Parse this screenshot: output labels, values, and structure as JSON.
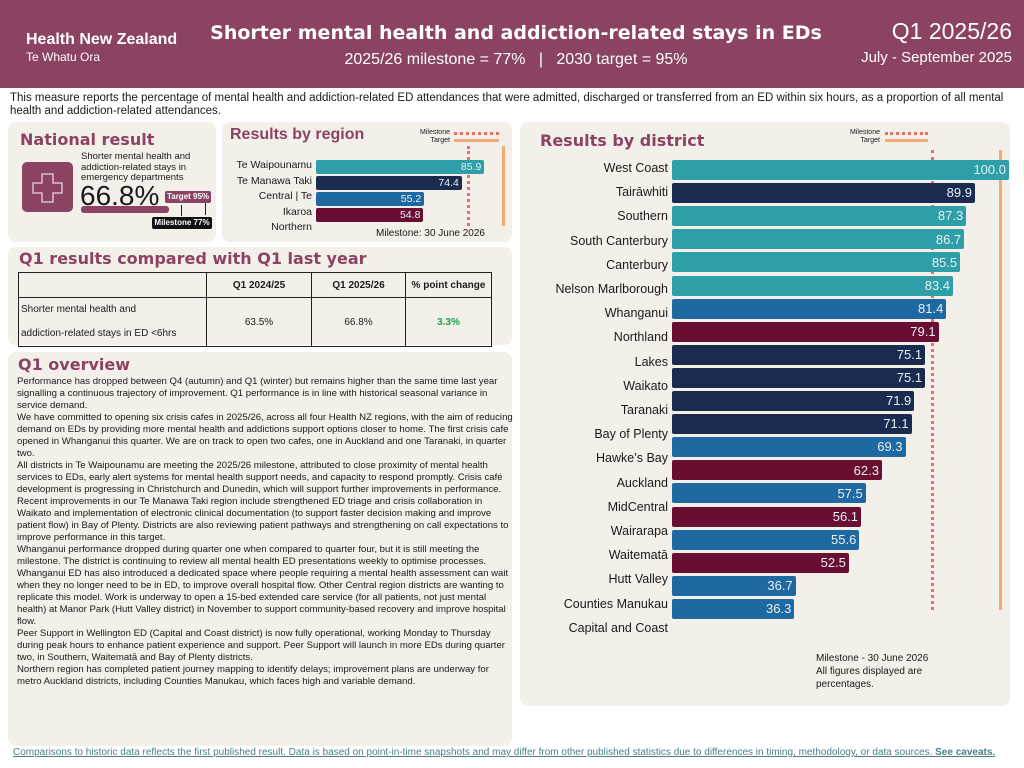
{
  "header": {
    "org": "Health New Zealand",
    "org_sub": "Te Whatu Ora",
    "title": "Shorter mental health and addiction-related stays in EDs",
    "subtitle": "2025/26 milestone = 77%   |   2030 target = 95%",
    "quarter": "Q1 2025/26",
    "period": "July - September 2025"
  },
  "description": "This measure reports the percentage of mental health and addiction-related ED attendances that were admitted, discharged or transferred from an ED within six hours, as a proportion of all mental health and addiction-related attendances.",
  "national": {
    "title": "National result",
    "icon": "medical-cross-icon",
    "measure": "Shorter mental health and addiction-related stays in emergency departments",
    "value": "66.8%",
    "value_num": 66.8,
    "target_badge": "Target 95%",
    "milestone_badge": "Milestone 77%"
  },
  "legend": {
    "milestone": "Milestone",
    "target": "Target"
  },
  "colors": {
    "header": "#8b4263",
    "te_waipounamu": "#2e9ea8",
    "te_manawa_taki": "#1b2a4f",
    "central": "#1f69a3",
    "northern": "#690e33",
    "milestone": "#f06b6b",
    "target": "#f5a878"
  },
  "chart_data": [
    {
      "type": "bar",
      "orientation": "horizontal",
      "title": "Results by region",
      "categories": [
        "Te Waipounamu",
        "Te Manawa Taki",
        "Central | Te Ikaroa",
        "Northern"
      ],
      "category_labels": [
        "Te Waipounamu",
        "Te Manawa Taki",
        "Central | Te",
        "Ikaroa",
        "Northern"
      ],
      "values": [
        85.9,
        74.4,
        55.2,
        54.8
      ],
      "value_labels": [
        "85.9",
        "74.4",
        "55.2",
        "54.8"
      ],
      "color_keys": [
        "te_waipounamu",
        "te_manawa_taki",
        "central",
        "northern"
      ],
      "milestone": 77,
      "target": 95,
      "xlim": [
        0,
        100
      ],
      "note": "Milestone: 30 June 2026"
    },
    {
      "type": "bar",
      "orientation": "horizontal",
      "title": "Results by district",
      "categories": [
        "West Coast",
        "Tairāwhiti",
        "Southern",
        "South Canterbury",
        "Canterbury",
        "Nelson Marlborough",
        "Whanganui",
        "Northland",
        "Lakes",
        "Waikato",
        "Taranaki",
        "Bay of Plenty",
        "Hawke’s Bay",
        "Auckland",
        "MidCentral",
        "Wairarapa",
        "Waitematā",
        "Hutt Valley",
        "Counties Manukau",
        "Capital and Coast"
      ],
      "values": [
        100.0,
        89.9,
        87.3,
        86.7,
        85.5,
        83.4,
        81.4,
        79.1,
        75.1,
        75.1,
        71.9,
        71.1,
        69.3,
        62.3,
        57.5,
        56.1,
        55.6,
        52.5,
        36.7,
        36.3
      ],
      "value_labels": [
        "100.0",
        "89.9",
        "87.3",
        "86.7",
        "85.5",
        "83.4",
        "81.4",
        "79.1",
        "75.1",
        "75.1",
        "71.9",
        "71.1",
        "69.3",
        "62.3",
        "57.5",
        "56.1",
        "55.6",
        "52.5",
        "36.7",
        "36.3"
      ],
      "color_keys": [
        "te_waipounamu",
        "te_manawa_taki",
        "te_waipounamu",
        "te_waipounamu",
        "te_waipounamu",
        "te_waipounamu",
        "central",
        "northern",
        "te_manawa_taki",
        "te_manawa_taki",
        "te_manawa_taki",
        "te_manawa_taki",
        "central",
        "northern",
        "central",
        "northern",
        "central",
        "northern",
        "central",
        "central"
      ],
      "milestone": 77,
      "target": 95,
      "xlim": [
        0,
        100
      ],
      "note": "Milestone -  30 June 2026\nAll figures displayed are percentages."
    }
  ],
  "comparison": {
    "title": "Q1 results compared with Q1 last year",
    "headers": [
      "",
      "Q1 2024/25",
      "Q1 2025/26",
      "% point change"
    ],
    "row": {
      "measure_line1": "Shorter mental health and",
      "measure_line2": "addiction-related stays in ED <6hrs",
      "prev": "63.5%",
      "curr": "66.8%",
      "change": "3.3%"
    }
  },
  "overview": {
    "title": "Q1 overview",
    "paragraphs": [
      "Performance has dropped between Q4 (autumn) and Q1 (winter) but remains higher than the same time last year signalling a continuous trajectory of improvement. Q1 performance is in line with historical seasonal variance in service demand.",
      "We have committed to opening six crisis cafes in 2025/26, across all four Health NZ regions, with the aim of reducing demand on EDs by providing more mental health and addictions support options closer to home. The first crisis cafe opened in Whanganui this quarter. We are on track to open two cafes, one in Auckland and one Taranaki, in quarter two.",
      "All districts in Te Waipounamu are meeting the 2025/26 milestone, attributed to close proximity of mental health services to EDs, early alert systems for mental health support needs, and capacity to respond promptly. Crisis café development is progressing in Christchurch and Dunedin, which will support further improvements in performance.",
      "Recent improvements in our Te Manawa Taki region include strengthened ED triage and crisis collaboration in Waikato and implementation of electronic clinical documentation (to support faster decision making and improve patient flow) in Bay of Plenty. Districts are also reviewing patient pathways and strengthening on call expectations to improve performance in this target.",
      "Whanganui performance dropped during quarter one when compared to quarter four, but it is still meeting the milestone. The district is continuing to review all mental health ED presentations weekly to optimise processes. Whanganui ED has also introduced a dedicated space where people requiring a mental health assessment can wait when they no longer need to be in ED, to improve overall hospital flow. Other Central region districts are wanting to replicate this model. Work is underway to open a 15-bed extended care service (for all patients, not just mental health) at Manor Park (Hutt Valley district) in November to support community-based recovery and improve hospital flow.",
      "Peer Support in Wellington ED (Capital and Coast district) is now fully operational, working Monday to Thursday during peak hours to enhance patient experience and support. Peer Support will launch in more EDs during quarter two, in Southern, Waitematā and Bay of Plenty districts.",
      "Northern region has completed patient journey mapping to identify delays; improvement plans are underway for metro Auckland districts, including Counties Manukau, which faces high and variable demand."
    ]
  },
  "footer": {
    "text": "Comparisons to historic data reflects the first published result. Data is based on point-in-time snapshots and may differ from other published statistics due to differences in timing, methodology, or data sources. ",
    "link": "See caveats."
  }
}
